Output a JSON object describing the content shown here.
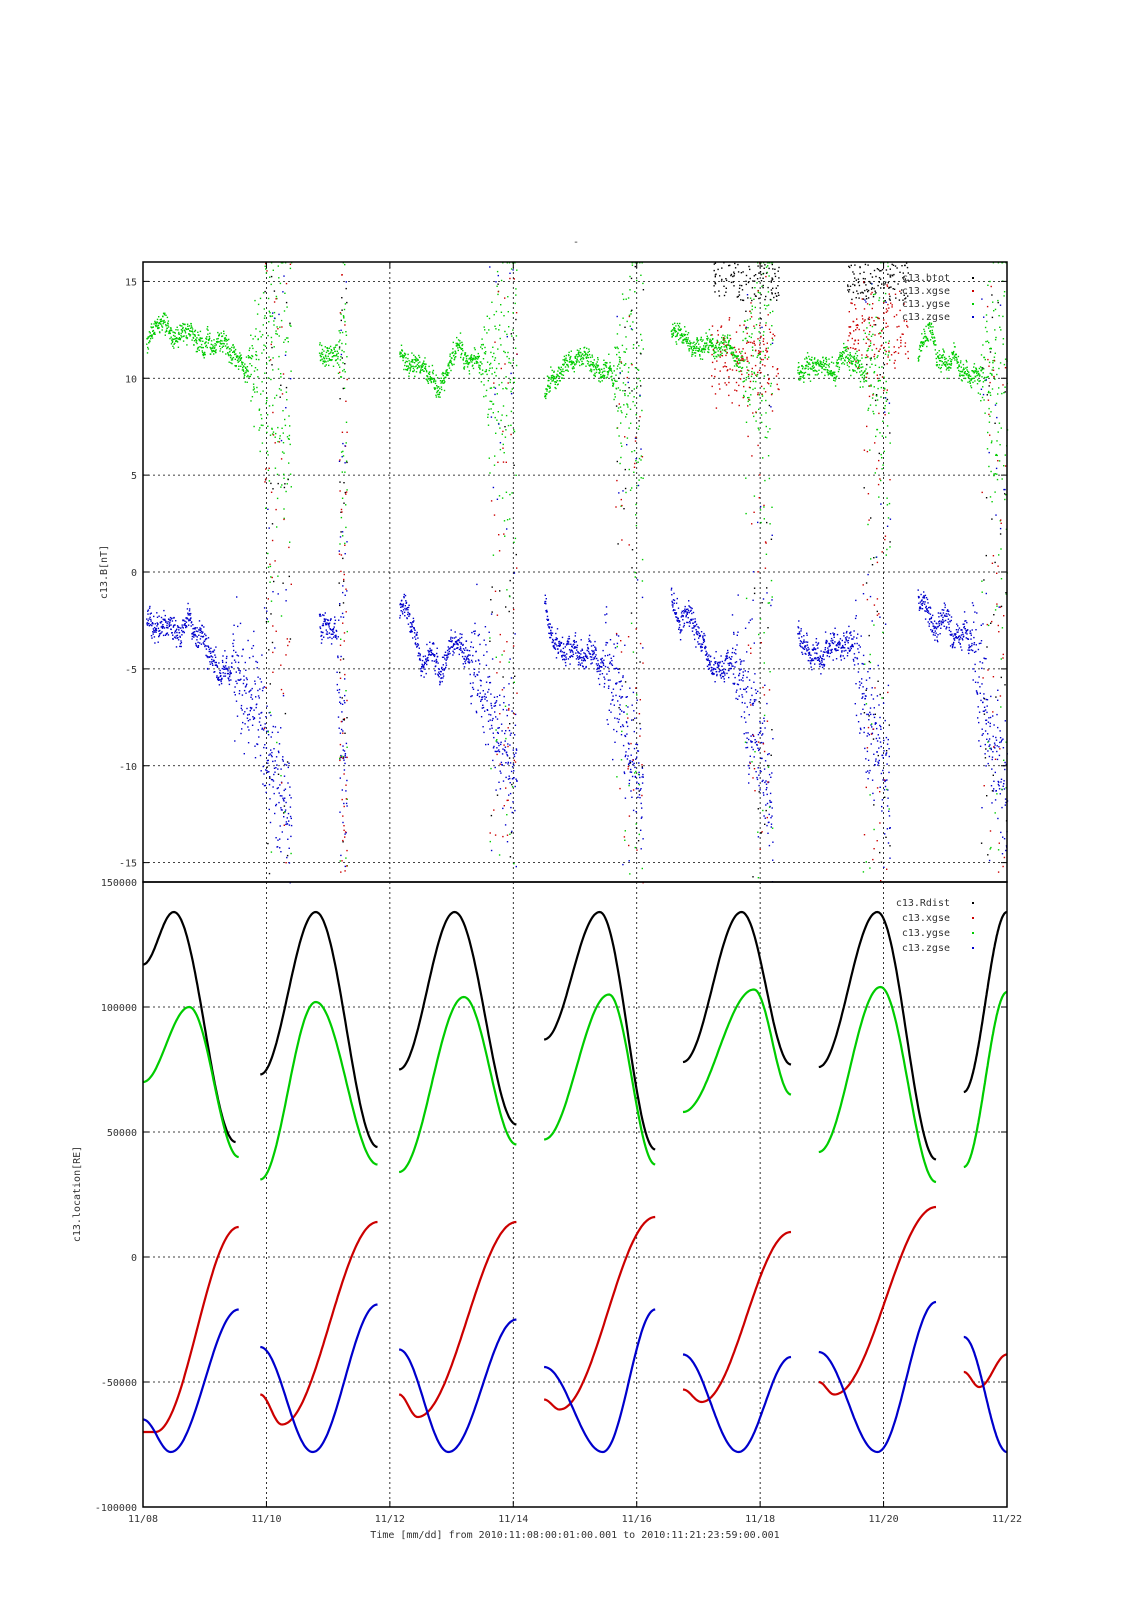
{
  "chart_data": [
    {
      "type": "scatter",
      "title": "-",
      "ylabel": "c13.B[nT]",
      "ylim": [
        -16,
        16
      ],
      "yticks": [
        "15",
        "10",
        "5",
        "0",
        "-5",
        "-10",
        "-15"
      ],
      "ytick_values": [
        15,
        10,
        5,
        0,
        -5,
        -10,
        -15
      ],
      "x_start": "2010-11-08 00:00",
      "x_end": "2010-11-22 00:00",
      "grid": true,
      "legend_position": "top-right",
      "segments": [
        [
          0.05,
          2.4
        ],
        [
          2.85,
          3.3
        ],
        [
          4.15,
          6.05
        ],
        [
          6.5,
          8.1
        ],
        [
          8.55,
          10.2
        ],
        [
          10.6,
          12.1
        ],
        [
          12.55,
          14
        ]
      ],
      "series": [
        {
          "name": "c13.btot",
          "color": "#000000"
        },
        {
          "name": "c13.xgse",
          "color": "#cc0000"
        },
        {
          "name": "c13.ygse",
          "color": "#00cc00"
        },
        {
          "name": "c13.zgse",
          "color": "#0000cc"
        }
      ]
    },
    {
      "type": "scatter",
      "title": "",
      "ylabel": "c13.location[RE]",
      "ylim": [
        -100000,
        150000
      ],
      "yticks": [
        "150000",
        "100000",
        "50000",
        "0",
        "-50000",
        "-100000"
      ],
      "ytick_values": [
        150000,
        100000,
        50000,
        0,
        -50000,
        -100000
      ],
      "xlabel": "Time [mm/dd]  from 2010:11:08:00:01:00.001  to  2010:11:21:23:59:00.001",
      "xticks": [
        "11/08",
        "11/10",
        "11/12",
        "11/14",
        "11/16",
        "11/18",
        "11/20",
        "11/22"
      ],
      "xtick_days": [
        0,
        2,
        4,
        6,
        8,
        10,
        12,
        14
      ],
      "grid": true,
      "legend_position": "top-right",
      "segments": [
        [
          0,
          1.55
        ],
        [
          1.9,
          3.8
        ],
        [
          4.15,
          6.05
        ],
        [
          6.5,
          8.3
        ],
        [
          8.75,
          10.5
        ],
        [
          10.95,
          12.85
        ],
        [
          13.3,
          14
        ]
      ],
      "series": [
        {
          "name": "c13.Rdist",
          "color": "#000000",
          "x_days": [
            0,
            0.5,
            1.5,
            1.9,
            2.8,
            3.8,
            4.15,
            5.05,
            6.05,
            6.5,
            7.4,
            8.3,
            8.75,
            9.7,
            10.5,
            10.95,
            11.9,
            12.85,
            13.3,
            14
          ],
          "values": [
            117000,
            138000,
            46000,
            73000,
            138000,
            44000,
            75000,
            138000,
            53000,
            87000,
            138000,
            43000,
            78000,
            138000,
            77000,
            76000,
            138000,
            39000,
            66000,
            138000
          ]
        },
        {
          "name": "c13.xgse",
          "color": "#cc0000",
          "x_days": [
            0,
            0.2,
            1.55,
            1.9,
            2.25,
            3.8,
            4.15,
            4.45,
            6.05,
            6.5,
            6.75,
            8.3,
            8.75,
            9.05,
            10.5,
            10.95,
            11.2,
            12.85,
            13.3,
            13.55,
            14
          ],
          "values": [
            -70000,
            -70000,
            12000,
            -55000,
            -67000,
            14000,
            -55000,
            -64000,
            14000,
            -57000,
            -61000,
            16000,
            -53000,
            -58000,
            10000,
            -50000,
            -55000,
            20000,
            -46000,
            -52000,
            -39000
          ]
        },
        {
          "name": "c13.ygse",
          "color": "#00cc00",
          "x_days": [
            0,
            0.75,
            1.55,
            1.9,
            2.8,
            3.8,
            4.15,
            5.2,
            6.05,
            6.5,
            7.55,
            8.3,
            8.75,
            9.9,
            10.5,
            10.95,
            11.95,
            12.85,
            13.3,
            14
          ],
          "values": [
            70000,
            100000,
            40000,
            31000,
            102000,
            37000,
            34000,
            104000,
            45000,
            47000,
            105000,
            37000,
            58000,
            107000,
            65000,
            42000,
            108000,
            30000,
            36000,
            106000
          ]
        },
        {
          "name": "c13.zgse",
          "color": "#0000cc",
          "x_days": [
            0,
            0.45,
            1.55,
            1.9,
            2.75,
            3.8,
            4.15,
            4.95,
            6.05,
            6.5,
            7.45,
            8.3,
            8.75,
            9.65,
            10.5,
            10.95,
            11.9,
            12.85,
            13.3,
            14
          ],
          "values": [
            -65000,
            -78000,
            -21000,
            -36000,
            -78000,
            -19000,
            -37000,
            -78000,
            -25000,
            -44000,
            -78000,
            -21000,
            -39000,
            -78000,
            -40000,
            -38000,
            -78000,
            -18000,
            -32000,
            -78000
          ]
        }
      ]
    }
  ]
}
